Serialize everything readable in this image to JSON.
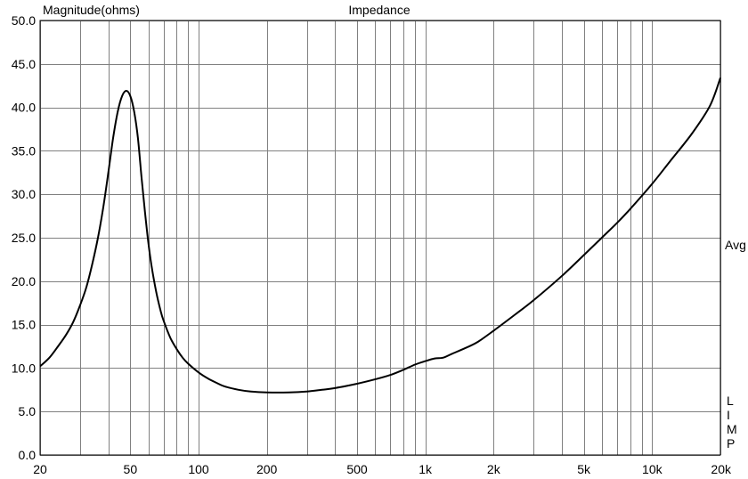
{
  "chart_data": {
    "type": "line",
    "title": "Impedance",
    "ylabel": "Magnitude(ohms)",
    "xlabel": "",
    "x_scale": "log",
    "xlim": [
      20,
      20000
    ],
    "ylim": [
      0,
      50
    ],
    "grid": true,
    "legend": "none",
    "right_label_top": "Avg",
    "right_label_bottom": [
      "L",
      "I",
      "M",
      "P"
    ],
    "y_ticks": [
      {
        "value": 0,
        "label": "0.0"
      },
      {
        "value": 5,
        "label": "5.0"
      },
      {
        "value": 10,
        "label": "10.0"
      },
      {
        "value": 15,
        "label": "15.0"
      },
      {
        "value": 20,
        "label": "20.0"
      },
      {
        "value": 25,
        "label": "25.0"
      },
      {
        "value": 30,
        "label": "30.0"
      },
      {
        "value": 35,
        "label": "35.0"
      },
      {
        "value": 40,
        "label": "40.0"
      },
      {
        "value": 45,
        "label": "45.0"
      },
      {
        "value": 50,
        "label": "50.0"
      }
    ],
    "x_ticks": [
      {
        "value": 20,
        "label": "20"
      },
      {
        "value": 50,
        "label": "50"
      },
      {
        "value": 100,
        "label": "100"
      },
      {
        "value": 200,
        "label": "200"
      },
      {
        "value": 500,
        "label": "500"
      },
      {
        "value": 1000,
        "label": "1k"
      },
      {
        "value": 2000,
        "label": "2k"
      },
      {
        "value": 5000,
        "label": "5k"
      },
      {
        "value": 10000,
        "label": "10k"
      },
      {
        "value": 20000,
        "label": "20k"
      }
    ],
    "x_gridlines": [
      20,
      30,
      40,
      50,
      60,
      70,
      80,
      90,
      100,
      200,
      300,
      400,
      500,
      600,
      700,
      800,
      900,
      1000,
      2000,
      3000,
      4000,
      5000,
      6000,
      7000,
      8000,
      9000,
      10000,
      20000
    ],
    "series": [
      {
        "color": "#000000",
        "x": [
          20,
          22,
          24,
          26,
          28,
          30,
          32,
          34,
          36,
          38,
          40,
          42,
          44,
          46,
          48,
          50,
          52,
          54,
          56,
          58,
          60,
          62,
          65,
          68,
          70,
          75,
          80,
          85,
          90,
          100,
          110,
          120,
          130,
          150,
          170,
          200,
          250,
          300,
          350,
          400,
          500,
          600,
          700,
          800,
          900,
          1000,
          1100,
          1200,
          1300,
          1500,
          1700,
          2000,
          2500,
          3000,
          4000,
          5000,
          6000,
          7000,
          8000,
          10000,
          12000,
          15000,
          18000,
          20000
        ],
        "y": [
          10.2,
          11.2,
          12.5,
          13.8,
          15.3,
          17.2,
          19.3,
          22.0,
          25.0,
          28.5,
          32.5,
          36.5,
          39.5,
          41.3,
          41.9,
          41.3,
          39.5,
          36.5,
          32.0,
          28.0,
          24.5,
          21.8,
          18.8,
          16.6,
          15.5,
          13.5,
          12.2,
          11.2,
          10.5,
          9.5,
          8.8,
          8.3,
          7.9,
          7.5,
          7.3,
          7.2,
          7.2,
          7.3,
          7.5,
          7.7,
          8.2,
          8.7,
          9.2,
          9.8,
          10.4,
          10.8,
          11.1,
          11.2,
          11.6,
          12.3,
          13.0,
          14.3,
          16.2,
          17.8,
          20.6,
          23.0,
          25.0,
          26.7,
          28.3,
          31.2,
          33.8,
          37.0,
          40.2,
          43.4
        ]
      }
    ]
  }
}
